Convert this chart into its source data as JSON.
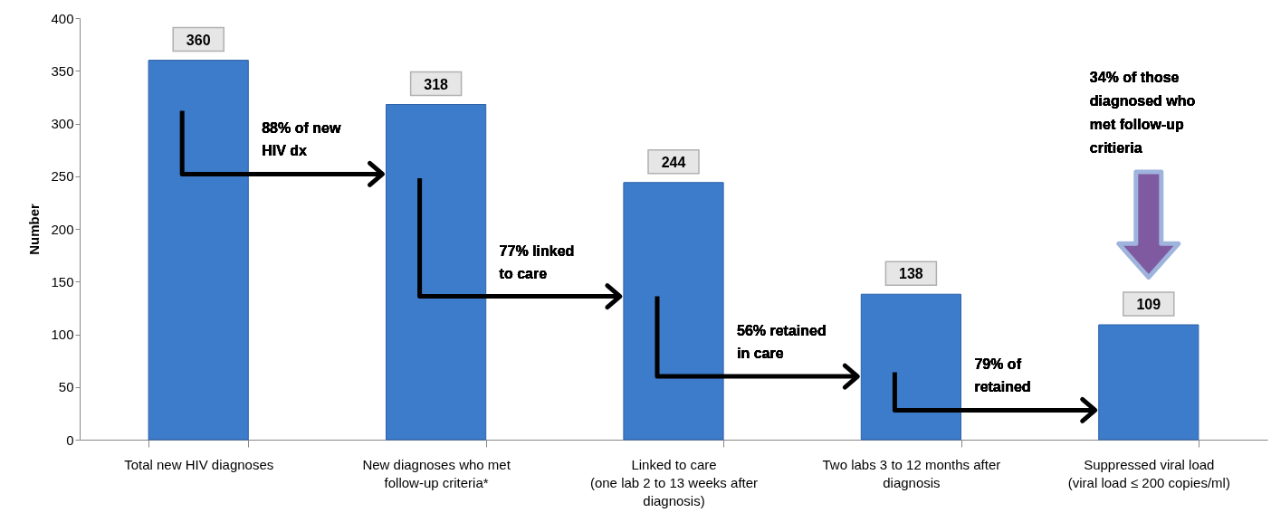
{
  "chart_data": {
    "type": "bar",
    "ylabel": "Number",
    "categories": [
      "Total new HIV diagnoses",
      "New diagnoses who met follow-up criteria*",
      "Linked to care (one lab 2 to 13 weeks after diagnosis)",
      "Two labs 3 to 12 months after diagnosis",
      "Suppressed viral load (viral load ≤ 200 copies/ml)"
    ],
    "values": [
      360,
      318,
      244,
      138,
      109
    ],
    "color": "#3d7bcb",
    "ylim": [
      0,
      400
    ],
    "yticks": [
      0,
      50,
      100,
      150,
      200,
      250,
      300,
      350,
      400
    ],
    "grid": false,
    "data_labels": true,
    "annotations": [
      "88% of new HIV dx",
      "77% linked to care",
      "56% retained in care",
      "79% of retained",
      "34% of those diagnosed who met follow-up critieria"
    ]
  }
}
